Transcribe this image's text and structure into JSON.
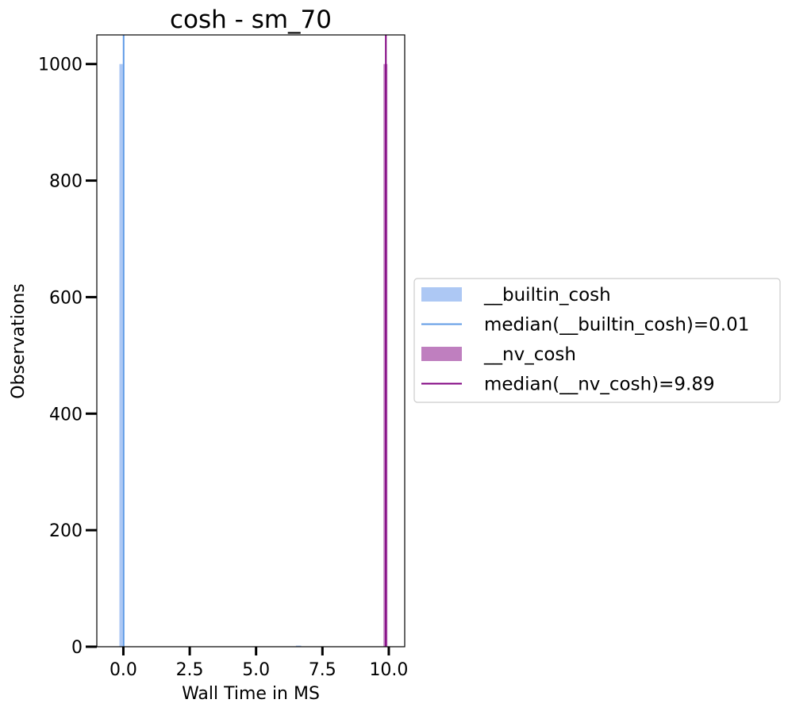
{
  "chart_data": {
    "type": "histogram",
    "title": "cosh - sm_70",
    "xlabel": "Wall Time in MS",
    "ylabel": "Observations",
    "xlim": [
      -1.0,
      10.6
    ],
    "ylim": [
      0,
      1050
    ],
    "xticks": [
      0.0,
      2.5,
      5.0,
      7.5,
      10.0
    ],
    "xtick_labels": [
      "0.0",
      "2.5",
      "5.0",
      "7.5",
      "10.0"
    ],
    "yticks": [
      0,
      200,
      400,
      600,
      800,
      1000
    ],
    "ytick_labels": [
      "0",
      "200",
      "400",
      "600",
      "800",
      "1000"
    ],
    "grid": false,
    "legend_position": "outside-right",
    "series": [
      {
        "name": "__builtin_cosh",
        "color": "#adc8f4",
        "bins": [
          {
            "x0": -0.15,
            "x1": -0.02,
            "count": 1000
          },
          {
            "x0": 6.5,
            "x1": 6.7,
            "count": 2
          }
        ]
      },
      {
        "name": "__nv_cosh",
        "color": "#bf7fbf",
        "bins": [
          {
            "x0": 9.8,
            "x1": 9.95,
            "count": 1000
          }
        ]
      }
    ],
    "median_lines": [
      {
        "name": "median(__builtin_cosh)=0.01",
        "x": 0.01,
        "color": "#5e9ae6"
      },
      {
        "name": "median(__nv_cosh)=9.89",
        "x": 9.89,
        "color": "#800080"
      }
    ],
    "legend": [
      {
        "label": "__builtin_cosh",
        "kind": "patch",
        "color": "#adc8f4"
      },
      {
        "label": "median(__builtin_cosh)=0.01",
        "kind": "line",
        "color": "#5e9ae6"
      },
      {
        "label": "__nv_cosh",
        "kind": "patch",
        "color": "#bf7fbf"
      },
      {
        "label": "median(__nv_cosh)=9.89",
        "kind": "line",
        "color": "#800080"
      }
    ]
  }
}
